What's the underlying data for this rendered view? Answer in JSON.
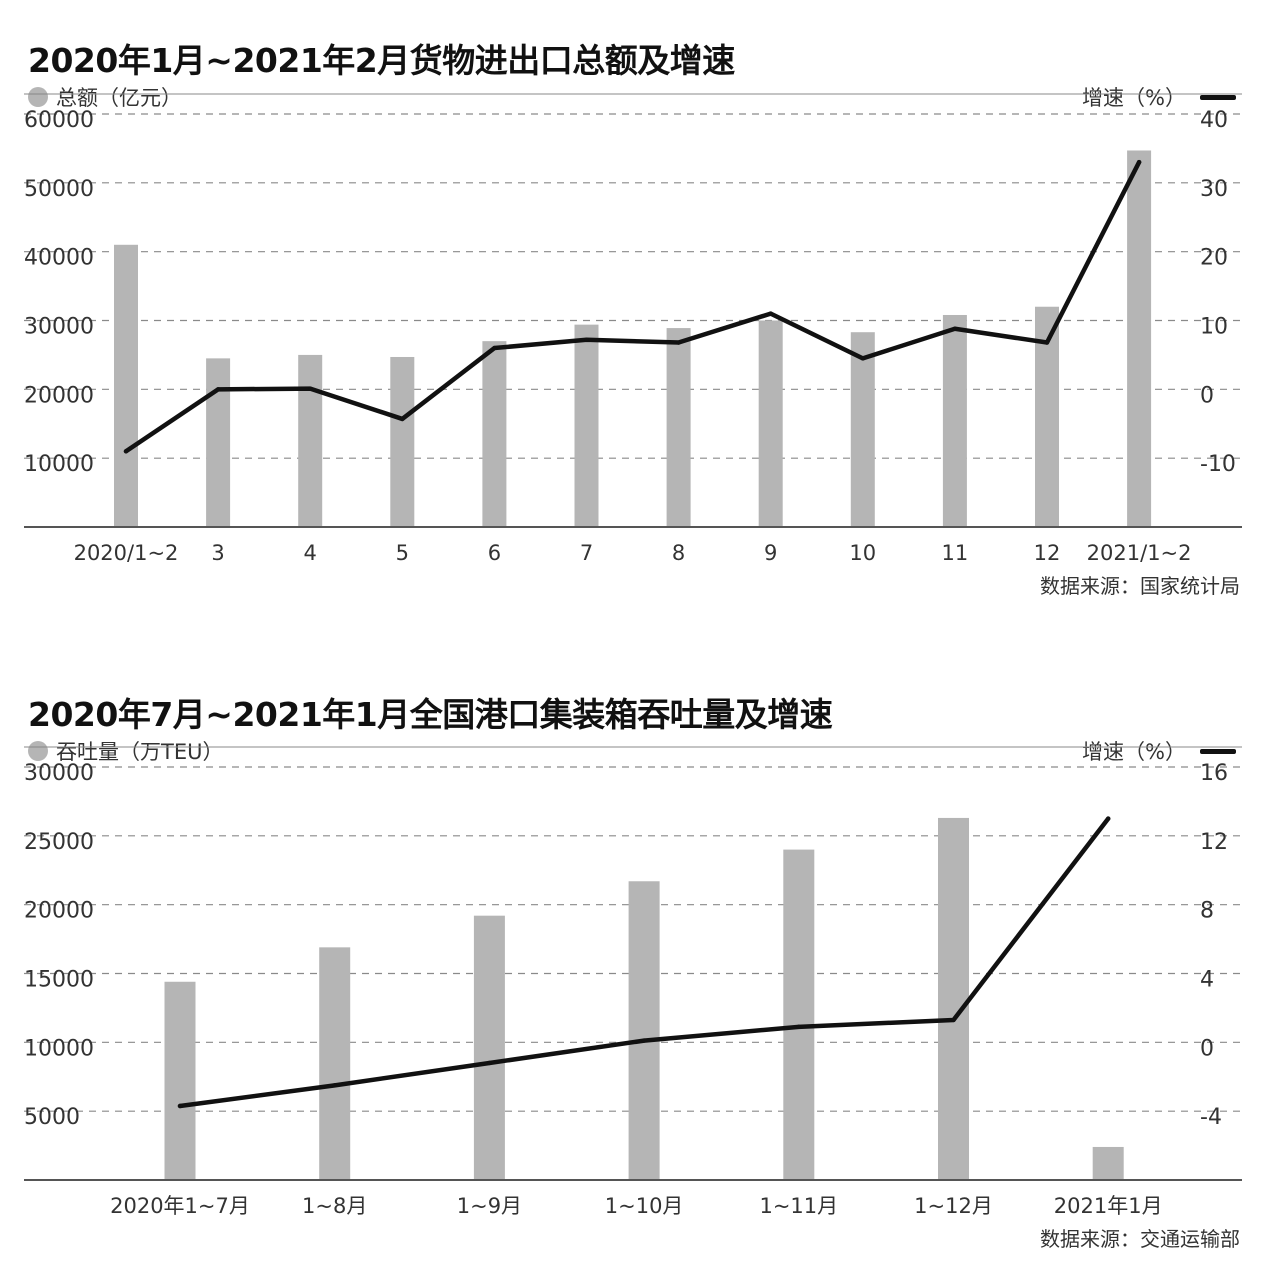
{
  "charts": [
    {
      "title": "2020年1月~2021年2月货物进出口总额及增速",
      "left_legend": "总额（亿元）",
      "right_legend": "增速（%）",
      "source": "数据来源：国家统计局",
      "bar_color": "#b5b5b5",
      "line_color": "#111111"
    },
    {
      "title": "2020年7月~2021年1月全国港口集装箱吞吐量及增速",
      "left_legend": "吞吐量（万TEU）",
      "right_legend": "增速（%）",
      "source": "数据来源：交通运输部",
      "bar_color": "#b5b5b5",
      "line_color": "#111111"
    }
  ],
  "chart_data": [
    {
      "type": "bar",
      "title": "2020年1月~2021年2月货物进出口总额及增速",
      "categories": [
        "2020/1~2",
        "3",
        "4",
        "5",
        "6",
        "7",
        "8",
        "9",
        "10",
        "11",
        "12",
        "2021/1~2"
      ],
      "series": [
        {
          "name": "总额（亿元）",
          "type": "bar",
          "axis": "left",
          "values": [
            41000,
            24500,
            25000,
            24700,
            27000,
            29400,
            28900,
            30000,
            28300,
            30800,
            32000,
            54700
          ]
        },
        {
          "name": "增速（%）",
          "type": "line",
          "axis": "right",
          "values": [
            -9,
            0,
            0.1,
            -4.3,
            6,
            7.2,
            6.8,
            11,
            4.5,
            8.8,
            6.8,
            33
          ]
        }
      ],
      "left_axis": {
        "ylim": [
          0,
          60000
        ],
        "ticks": [
          10000,
          20000,
          30000,
          40000,
          50000,
          60000
        ]
      },
      "right_axis": {
        "ylim": [
          -20,
          40
        ],
        "ticks": [
          -10,
          0,
          10,
          20,
          30,
          40
        ]
      },
      "grid": true
    },
    {
      "type": "bar",
      "title": "2020年7月~2021年1月全国港口集装箱吞吐量及增速",
      "categories": [
        "2020年1~7月",
        "1~8月",
        "1~9月",
        "1~10月",
        "1~11月",
        "1~12月",
        "2021年1月"
      ],
      "series": [
        {
          "name": "吞吐量（万TEU）",
          "type": "bar",
          "axis": "left",
          "values": [
            14400,
            16900,
            19200,
            21700,
            24000,
            26300,
            2400
          ]
        },
        {
          "name": "增速（%）",
          "type": "line",
          "axis": "right",
          "values": [
            -3.7,
            -2.5,
            -1.2,
            0.1,
            0.9,
            1.3,
            13
          ]
        }
      ],
      "left_axis": {
        "ylim": [
          0,
          30000
        ],
        "ticks": [
          5000,
          10000,
          15000,
          20000,
          25000,
          30000
        ]
      },
      "right_axis": {
        "ylim": [
          -8,
          16
        ],
        "ticks": [
          -4,
          0,
          4,
          8,
          12,
          16
        ]
      },
      "grid": true
    }
  ]
}
